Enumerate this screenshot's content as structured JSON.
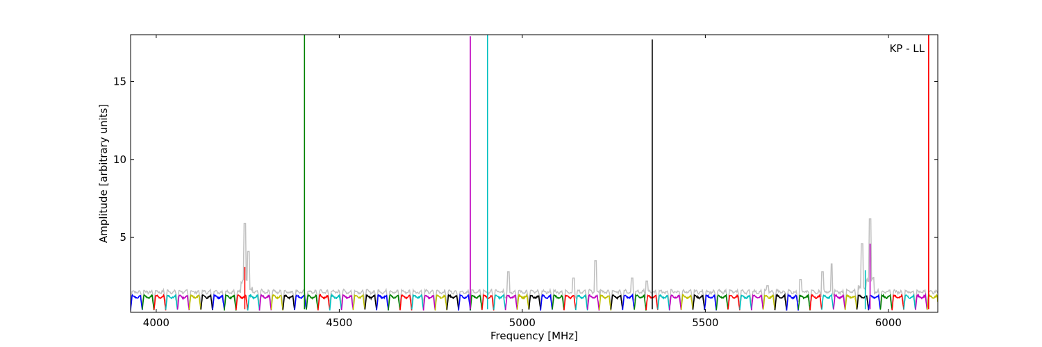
{
  "chart_data": {
    "type": "line",
    "annotation": "KP - LL",
    "xlabel": "Frequency [MHz]",
    "ylabel": "Amplitude [arbitrary units]",
    "xlim": [
      3930,
      6135
    ],
    "ylim": [
      0.2,
      18
    ],
    "xticks": [
      4000,
      4500,
      5000,
      5500,
      6000
    ],
    "yticks": [
      5,
      10,
      15
    ],
    "grid": false,
    "legend": "none",
    "background_trace": {
      "color": "#bfbfbf",
      "description_values": [
        [
          4242,
          5.9
        ],
        [
          4252,
          4.1
        ],
        [
          4962,
          2.8
        ],
        [
          5140,
          2.4
        ],
        [
          5200,
          3.5
        ],
        [
          5300,
          2.4
        ],
        [
          5340,
          2.2
        ],
        [
          5670,
          1.9
        ],
        [
          5760,
          2.3
        ],
        [
          5820,
          2.8
        ],
        [
          5845,
          3.3
        ],
        [
          5928,
          4.6
        ],
        [
          5950,
          6.2
        ]
      ]
    },
    "channel_colors": [
      "#0000ff",
      "#008000",
      "#ff0000",
      "#00bfbf",
      "#bf00bf",
      "#bfbf00",
      "#000000"
    ],
    "channel_width_mhz": 32,
    "channel_start_mhz": 3930,
    "spikes": [
      {
        "x": 4242,
        "y": 3.1,
        "color": "#ff0000"
      },
      {
        "x": 4405,
        "y": 18.0,
        "color": "#008000"
      },
      {
        "x": 4858,
        "y": 17.9,
        "color": "#bf00bf"
      },
      {
        "x": 4905,
        "y": 18.0,
        "color": "#00bfbf"
      },
      {
        "x": 5355,
        "y": 17.7,
        "color": "#000000"
      },
      {
        "x": 5950,
        "y": 4.6,
        "color": "#bf00bf"
      },
      {
        "x": 5937,
        "y": 2.9,
        "color": "#00bfbf"
      },
      {
        "x": 6110,
        "y": 18.0,
        "color": "#ff0000"
      }
    ],
    "baseline_level": 1.2,
    "dip_level": 0.35
  }
}
